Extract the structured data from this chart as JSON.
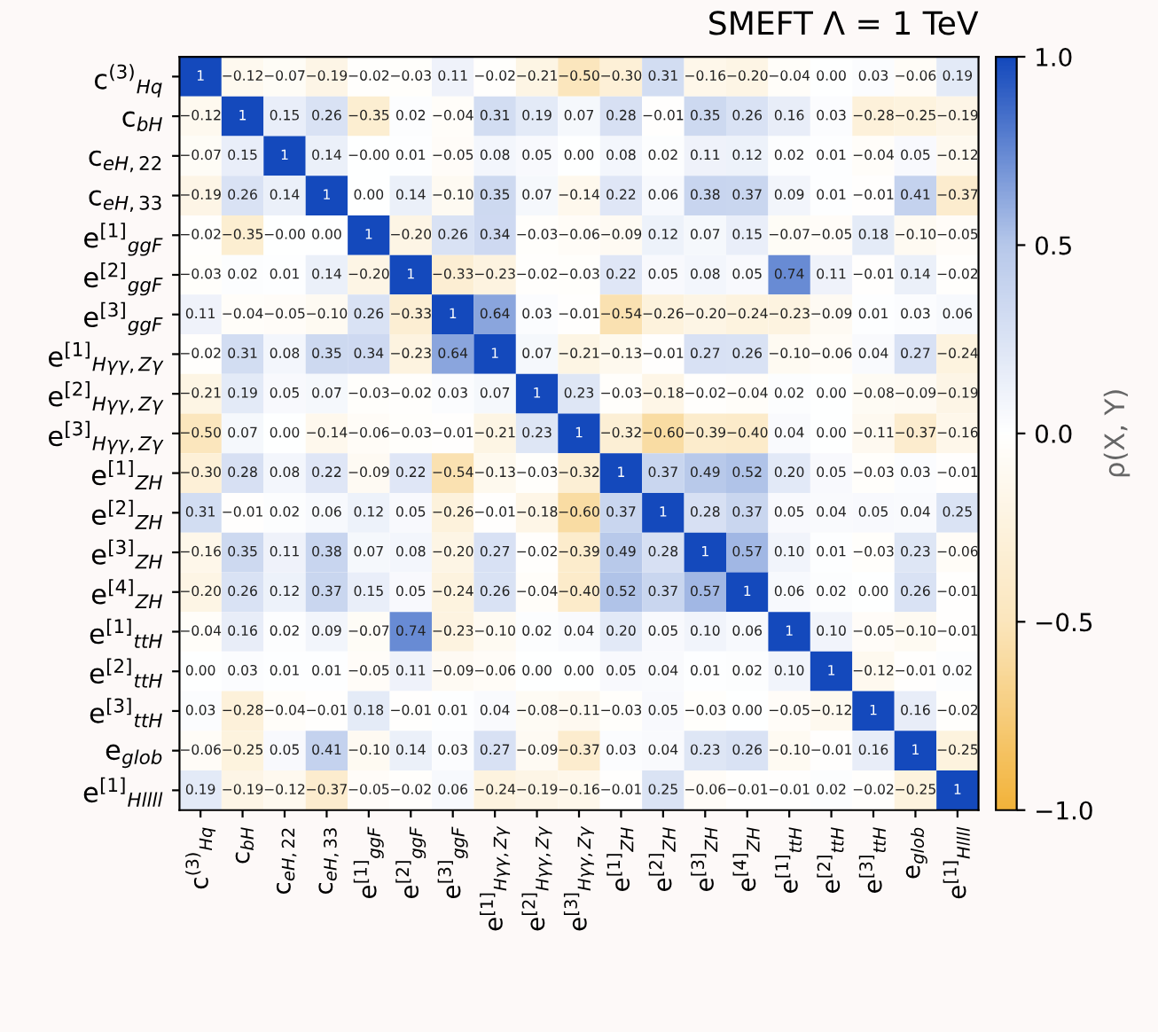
{
  "chart_data": {
    "type": "heatmap",
    "title": "SMEFT Λ = 1 TeV",
    "clabel": "ρ(X, Y)",
    "categories": [
      "c$^{(3)}$$_{Hq}$",
      "c$_{bH}$",
      "c$_{eH,22}$",
      "c$_{eH,33}$",
      "e$^{[1]}$$_{ggF}$",
      "e$^{[2]}$$_{ggF}$",
      "e$^{[3]}$$_{ggF}$",
      "e$^{[1]}$$_{Hγγ,Zγ}$",
      "e$^{[2]}$$_{Hγγ,Zγ}$",
      "e$^{[3]}$$_{Hγγ,Zγ}$",
      "e$^{[1]}$$_{ZH}$",
      "e$^{[2]}$$_{ZH}$",
      "e$^{[3]}$$_{ZH}$",
      "e$^{[4]}$$_{ZH}$",
      "e$^{[1]}$$_{ttH}$",
      "e$^{[2]}$$_{ttH}$",
      "e$^{[3]}$$_{ttH}$",
      "e$_{glob}$",
      "e$^{[1]}$$_{Hllll}$"
    ],
    "y_categories": [
      "c$^{(3)}$$_{Hq}$",
      "c$_{bH}$",
      "c$_{eH,22}$",
      "c$_{eH,33}$",
      "e$^{[1]}$$_{ggF}$",
      "e$^{[2]}$$_{ggF}$",
      "e$^{[3]}$$_{ggF}$",
      "e$^{[1]}$$_{Hγγ,Zγ}$",
      "e$^{[2]}$$_{Hγγ,Zγ}$",
      "e$^{[3]}$$_{Hγγ,Zγ}$",
      "e$^{[1]}$$_{ZH}$",
      "e$^{[2]}$$_{ZH}$",
      "e$^{[3]}$$_{ZH}$",
      "e$^{[4]}$$_{ZH}$",
      "e$^{[1]}$$_{ttH}$",
      "e$^{[2]}$$_{ttH}$",
      "e$^{[3]}$$_{ttH}$",
      "e$_{glob}$",
      "e$^{[1]}$$_{Hllll}$"
    ],
    "cells": [
      [
        1,
        -0.12,
        -0.07,
        -0.19,
        -0.02,
        -0.03,
        0.11,
        -0.02,
        -0.21,
        -0.5,
        -0.3,
        0.31,
        -0.16,
        -0.2,
        -0.04,
        0.0,
        0.03,
        -0.06,
        0.19
      ],
      [
        -0.12,
        1,
        0.15,
        0.26,
        -0.35,
        0.02,
        -0.04,
        0.31,
        0.19,
        0.07,
        0.28,
        -0.01,
        0.35,
        0.26,
        0.16,
        0.03,
        -0.28,
        -0.25,
        -0.19
      ],
      [
        -0.07,
        0.15,
        1,
        0.14,
        -0.0,
        0.01,
        -0.05,
        0.08,
        0.05,
        0.0,
        0.08,
        0.02,
        0.11,
        0.12,
        0.02,
        0.01,
        -0.04,
        0.05,
        -0.12
      ],
      [
        -0.19,
        0.26,
        0.14,
        1,
        0.0,
        0.14,
        -0.1,
        0.35,
        0.07,
        -0.14,
        0.22,
        0.06,
        0.38,
        0.37,
        0.09,
        0.01,
        -0.01,
        0.41,
        -0.37
      ],
      [
        -0.02,
        -0.35,
        -0.0,
        0.0,
        1,
        -0.2,
        0.26,
        0.34,
        -0.03,
        -0.06,
        -0.09,
        0.12,
        0.07,
        0.15,
        -0.07,
        -0.05,
        0.18,
        -0.1,
        -0.05
      ],
      [
        -0.03,
        0.02,
        0.01,
        0.14,
        -0.2,
        1,
        -0.33,
        -0.23,
        -0.02,
        -0.03,
        0.22,
        0.05,
        0.08,
        0.05,
        0.74,
        0.11,
        -0.01,
        0.14,
        -0.02
      ],
      [
        0.11,
        -0.04,
        -0.05,
        -0.1,
        0.26,
        -0.33,
        1,
        0.64,
        0.03,
        -0.01,
        -0.54,
        -0.26,
        -0.2,
        -0.24,
        -0.23,
        -0.09,
        0.01,
        0.03,
        0.06
      ],
      [
        -0.02,
        0.31,
        0.08,
        0.35,
        0.34,
        -0.23,
        0.64,
        1,
        0.07,
        -0.21,
        -0.13,
        -0.01,
        0.27,
        0.26,
        -0.1,
        -0.06,
        0.04,
        0.27,
        -0.24
      ],
      [
        -0.21,
        0.19,
        0.05,
        0.07,
        -0.03,
        -0.02,
        0.03,
        0.07,
        1,
        0.23,
        -0.03,
        -0.18,
        -0.02,
        -0.04,
        0.02,
        0.0,
        -0.08,
        -0.09,
        -0.19
      ],
      [
        -0.5,
        0.07,
        0.0,
        -0.14,
        -0.06,
        -0.03,
        -0.01,
        -0.21,
        0.23,
        1,
        -0.32,
        -0.6,
        -0.39,
        -0.4,
        0.04,
        0.0,
        -0.11,
        -0.37,
        -0.16
      ],
      [
        -0.3,
        0.28,
        0.08,
        0.22,
        -0.09,
        0.22,
        -0.54,
        -0.13,
        -0.03,
        -0.32,
        1,
        0.37,
        0.49,
        0.52,
        0.2,
        0.05,
        -0.03,
        0.03,
        -0.01
      ],
      [
        0.31,
        -0.01,
        0.02,
        0.06,
        0.12,
        0.05,
        -0.26,
        -0.01,
        -0.18,
        -0.6,
        0.37,
        1,
        0.28,
        0.37,
        0.05,
        0.04,
        0.05,
        0.04,
        0.25
      ],
      [
        -0.16,
        0.35,
        0.11,
        0.38,
        0.07,
        0.08,
        -0.2,
        0.27,
        -0.02,
        -0.39,
        0.49,
        0.28,
        1,
        0.57,
        0.1,
        0.01,
        -0.03,
        0.23,
        -0.06
      ],
      [
        -0.2,
        0.26,
        0.12,
        0.37,
        0.15,
        0.05,
        -0.24,
        0.26,
        -0.04,
        -0.4,
        0.52,
        0.37,
        0.57,
        1,
        0.06,
        0.02,
        0.0,
        0.26,
        -0.01
      ],
      [
        -0.04,
        0.16,
        0.02,
        0.09,
        -0.07,
        0.74,
        -0.23,
        -0.1,
        0.02,
        0.04,
        0.2,
        0.05,
        0.1,
        0.06,
        1,
        0.1,
        -0.05,
        -0.1,
        -0.01
      ],
      [
        0.0,
        0.03,
        0.01,
        0.01,
        -0.05,
        0.11,
        -0.09,
        -0.06,
        0.0,
        0.0,
        0.05,
        0.04,
        0.01,
        0.02,
        0.1,
        1,
        -0.12,
        -0.01,
        0.02
      ],
      [
        0.03,
        -0.28,
        -0.04,
        -0.01,
        0.18,
        -0.01,
        0.01,
        0.04,
        -0.08,
        -0.11,
        -0.03,
        0.05,
        -0.03,
        0.0,
        -0.05,
        -0.12,
        1,
        0.16,
        -0.02
      ],
      [
        -0.06,
        -0.25,
        0.05,
        0.41,
        -0.1,
        0.14,
        0.03,
        0.27,
        -0.09,
        -0.37,
        0.03,
        0.04,
        0.23,
        0.26,
        -0.1,
        -0.01,
        0.16,
        1,
        -0.25
      ],
      [
        0.19,
        -0.19,
        -0.12,
        -0.37,
        -0.05,
        -0.02,
        0.06,
        -0.24,
        -0.19,
        -0.16,
        -0.01,
        0.25,
        -0.06,
        -0.01,
        -0.01,
        0.02,
        -0.02,
        -0.25,
        1
      ]
    ],
    "cell_labels": [
      [
        "1",
        "−0.12",
        "−0.07",
        "−0.19",
        "−0.02",
        "−0.03",
        "0.11",
        "−0.02",
        "−0.21",
        "−0.50",
        "−0.30",
        "0.31",
        "−0.16",
        "−0.20",
        "−0.04",
        "0.00",
        "0.03",
        "−0.06",
        "0.19"
      ],
      [
        "−0.12",
        "1",
        "0.15",
        "0.26",
        "−0.35",
        "0.02",
        "−0.04",
        "0.31",
        "0.19",
        "0.07",
        "0.28",
        "−0.01",
        "0.35",
        "0.26",
        "0.16",
        "0.03",
        "−0.28",
        "−0.25",
        "−0.19"
      ],
      [
        "−0.07",
        "0.15",
        "1",
        "0.14",
        "−0.00",
        "0.01",
        "−0.05",
        "0.08",
        "0.05",
        "0.00",
        "0.08",
        "0.02",
        "0.11",
        "0.12",
        "0.02",
        "0.01",
        "−0.04",
        "0.05",
        "−0.12"
      ],
      [
        "−0.19",
        "0.26",
        "0.14",
        "1",
        "0.00",
        "0.14",
        "−0.10",
        "0.35",
        "0.07",
        "−0.14",
        "0.22",
        "0.06",
        "0.38",
        "0.37",
        "0.09",
        "0.01",
        "−0.01",
        "0.41",
        "−0.37"
      ],
      [
        "−0.02",
        "−0.35",
        "−0.00",
        "0.00",
        "1",
        "−0.20",
        "0.26",
        "0.34",
        "−0.03",
        "−0.06",
        "−0.09",
        "0.12",
        "0.07",
        "0.15",
        "−0.07",
        "−0.05",
        "0.18",
        "−0.10",
        "−0.05"
      ],
      [
        "−0.03",
        "0.02",
        "0.01",
        "0.14",
        "−0.20",
        "1",
        "−0.33",
        "−0.23",
        "−0.02",
        "−0.03",
        "0.22",
        "0.05",
        "0.08",
        "0.05",
        "0.74",
        "0.11",
        "−0.01",
        "0.14",
        "−0.02"
      ],
      [
        "0.11",
        "−0.04",
        "−0.05",
        "−0.10",
        "0.26",
        "−0.33",
        "1",
        "0.64",
        "0.03",
        "−0.01",
        "−0.54",
        "−0.26",
        "−0.20",
        "−0.24",
        "−0.23",
        "−0.09",
        "0.01",
        "0.03",
        "0.06"
      ],
      [
        "−0.02",
        "0.31",
        "0.08",
        "0.35",
        "0.34",
        "−0.23",
        "0.64",
        "1",
        "0.07",
        "−0.21",
        "−0.13",
        "−0.01",
        "0.27",
        "0.26",
        "−0.10",
        "−0.06",
        "0.04",
        "0.27",
        "−0.24"
      ],
      [
        "−0.21",
        "0.19",
        "0.05",
        "0.07",
        "−0.03",
        "−0.02",
        "0.03",
        "0.07",
        "1",
        "0.23",
        "−0.03",
        "−0.18",
        "−0.02",
        "−0.04",
        "0.02",
        "0.00",
        "−0.08",
        "−0.09",
        "−0.19"
      ],
      [
        "−0.50",
        "0.07",
        "0.00",
        "−0.14",
        "−0.06",
        "−0.03",
        "−0.01",
        "−0.21",
        "0.23",
        "1",
        "−0.32",
        "−0.60",
        "−0.39",
        "−0.40",
        "0.04",
        "0.00",
        "−0.11",
        "−0.37",
        "−0.16"
      ],
      [
        "−0.30",
        "0.28",
        "0.08",
        "0.22",
        "−0.09",
        "0.22",
        "−0.54",
        "−0.13",
        "−0.03",
        "−0.32",
        "1",
        "0.37",
        "0.49",
        "0.52",
        "0.20",
        "0.05",
        "−0.03",
        "0.03",
        "−0.01"
      ],
      [
        "0.31",
        "−0.01",
        "0.02",
        "0.06",
        "0.12",
        "0.05",
        "−0.26",
        "−0.01",
        "−0.18",
        "−0.60",
        "0.37",
        "1",
        "0.28",
        "0.37",
        "0.05",
        "0.04",
        "0.05",
        "0.04",
        "0.25"
      ],
      [
        "−0.16",
        "0.35",
        "0.11",
        "0.38",
        "0.07",
        "0.08",
        "−0.20",
        "0.27",
        "−0.02",
        "−0.39",
        "0.49",
        "0.28",
        "1",
        "0.57",
        "0.10",
        "0.01",
        "−0.03",
        "0.23",
        "−0.06"
      ],
      [
        "−0.20",
        "0.26",
        "0.12",
        "0.37",
        "0.15",
        "0.05",
        "−0.24",
        "0.26",
        "−0.04",
        "−0.40",
        "0.52",
        "0.37",
        "0.57",
        "1",
        "0.06",
        "0.02",
        "0.00",
        "0.26",
        "−0.01"
      ],
      [
        "−0.04",
        "0.16",
        "0.02",
        "0.09",
        "−0.07",
        "0.74",
        "−0.23",
        "−0.10",
        "0.02",
        "0.04",
        "0.20",
        "0.05",
        "0.10",
        "0.06",
        "1",
        "0.10",
        "−0.05",
        "−0.10",
        "−0.01"
      ],
      [
        "0.00",
        "0.03",
        "0.01",
        "0.01",
        "−0.05",
        "0.11",
        "−0.09",
        "−0.06",
        "0.00",
        "0.00",
        "0.05",
        "0.04",
        "0.01",
        "0.02",
        "0.10",
        "1",
        "−0.12",
        "−0.01",
        "0.02"
      ],
      [
        "0.03",
        "−0.28",
        "−0.04",
        "−0.01",
        "0.18",
        "−0.01",
        "0.01",
        "0.04",
        "−0.08",
        "−0.11",
        "−0.03",
        "0.05",
        "−0.03",
        "0.00",
        "−0.05",
        "−0.12",
        "1",
        "0.16",
        "−0.02"
      ],
      [
        "−0.06",
        "−0.25",
        "0.05",
        "0.41",
        "−0.10",
        "0.14",
        "0.03",
        "0.27",
        "−0.09",
        "−0.37",
        "0.03",
        "0.04",
        "0.23",
        "0.26",
        "−0.10",
        "−0.01",
        "0.16",
        "1",
        "−0.25"
      ],
      [
        "0.19",
        "−0.19",
        "−0.12",
        "−0.37",
        "−0.05",
        "−0.02",
        "0.06",
        "−0.24",
        "−0.19",
        "−0.16",
        "−0.01",
        "0.25",
        "−0.06",
        "−0.01",
        "−0.01",
        "0.02",
        "−0.02",
        "−0.25",
        "1"
      ]
    ],
    "clim": [
      -1.0,
      1.0
    ],
    "cticks": [
      {
        "value": -1.0,
        "label": "−1.0"
      },
      {
        "value": -0.5,
        "label": "−0.5"
      },
      {
        "value": 0.0,
        "label": "0.0"
      },
      {
        "value": 0.5,
        "label": "0.5"
      },
      {
        "value": 1.0,
        "label": "1.0"
      }
    ]
  }
}
